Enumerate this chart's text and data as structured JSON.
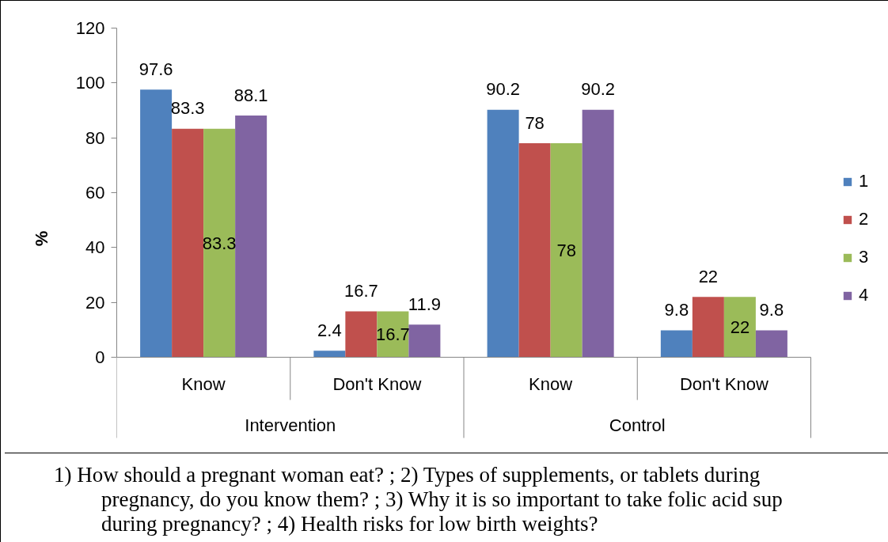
{
  "chart_data": {
    "type": "bar",
    "ylabel": "%",
    "categories": [
      "Know",
      "Don't Know",
      "Know",
      "Don't Know"
    ],
    "series": [
      {
        "name": "1",
        "color": "#4f81bd",
        "values": [
          97.6,
          2.4,
          90.2,
          9.8
        ]
      },
      {
        "name": "2",
        "color": "#c0504d",
        "values": [
          83.3,
          16.7,
          78,
          22
        ]
      },
      {
        "name": "3",
        "color": "#9bbb59",
        "values": [
          83.3,
          16.7,
          78,
          22
        ]
      },
      {
        "name": "4",
        "color": "#8064a2",
        "values": [
          88.1,
          11.9,
          90.2,
          9.8
        ]
      }
    ],
    "ylim": [
      0,
      120
    ],
    "yticks": [
      0,
      20,
      40,
      60,
      80,
      100,
      120
    ],
    "data_labels": true,
    "grid": false,
    "legend": "right",
    "annotations": [
      "Intervention",
      "Control",
      "1) How should a pregnant woman eat? ; 2) Types of supplements, or tablets during pregnancy, do you know them? ; 3) Why it is so important to take folic acid sup during pregnancy? ; 4) Health risks for low birth weights?"
    ]
  }
}
